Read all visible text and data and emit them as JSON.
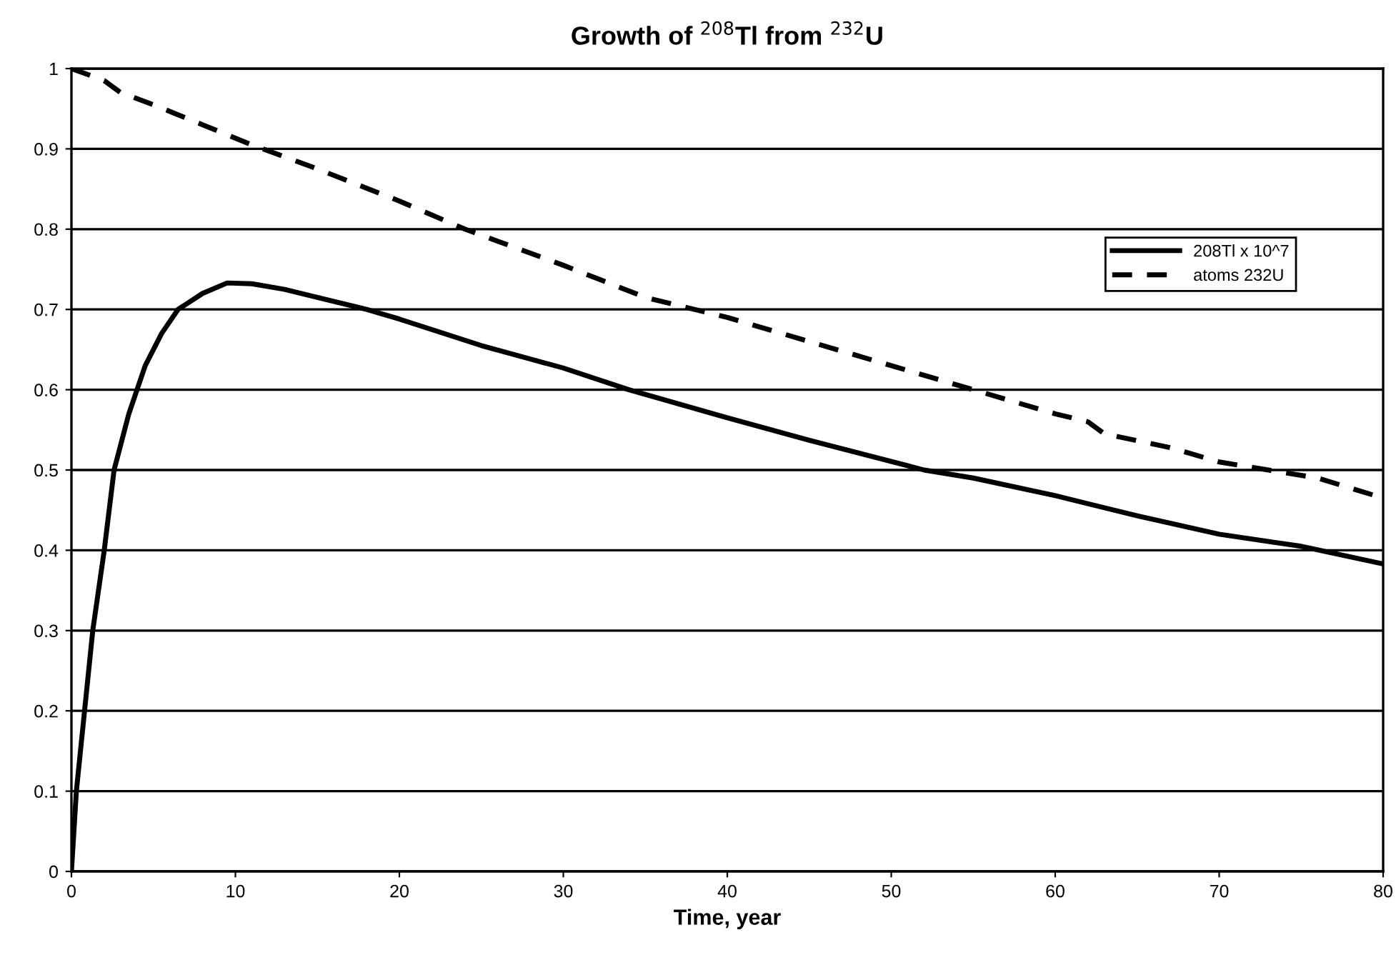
{
  "chart_data": {
    "type": "line",
    "title": "Growth of $^{208}$Tl from $^{232}$U",
    "xlabel": "Time, year",
    "xlim": [
      0,
      80
    ],
    "xticks": [
      0,
      10,
      20,
      30,
      40,
      50,
      60,
      70,
      80
    ],
    "ylim": [
      0,
      1
    ],
    "yticks": [
      0,
      0.1,
      0.2,
      0.3,
      0.4,
      0.5,
      0.6,
      0.7,
      0.8,
      0.9,
      1
    ],
    "grid": "y",
    "legend": "top right",
    "marker": "none",
    "series": [
      {
        "name": "208Tl x 10^7",
        "color": "#000000",
        "line_style": "solid",
        "x": [
          0,
          0.3,
          0.8,
          1.3,
          2,
          2.6,
          3.5,
          4.5,
          5.5,
          6.5,
          8,
          9.5,
          11,
          13,
          15,
          18,
          20,
          25,
          30,
          34,
          40,
          45,
          52,
          55,
          60,
          65,
          70,
          75,
          80
        ],
        "values": [
          0,
          0.1,
          0.2,
          0.3,
          0.4,
          0.5,
          0.57,
          0.63,
          0.67,
          0.7,
          0.72,
          0.733,
          0.732,
          0.725,
          0.715,
          0.7,
          0.688,
          0.655,
          0.627,
          0.6,
          0.565,
          0.537,
          0.5,
          0.49,
          0.468,
          0.443,
          0.42,
          0.405,
          0.383
        ]
      },
      {
        "name": "atoms 232U",
        "color": "#000000",
        "line_style": "dashed",
        "x": [
          0,
          2,
          3,
          5,
          8,
          11,
          15,
          20,
          24,
          26,
          30,
          35,
          40,
          45,
          50,
          55,
          60,
          62,
          63,
          67,
          70,
          73,
          76,
          80
        ],
        "values": [
          1,
          0.985,
          0.97,
          0.955,
          0.93,
          0.905,
          0.875,
          0.835,
          0.8,
          0.785,
          0.755,
          0.715,
          0.69,
          0.66,
          0.63,
          0.6,
          0.57,
          0.56,
          0.545,
          0.528,
          0.51,
          0.5,
          0.49,
          0.465
        ]
      }
    ]
  }
}
